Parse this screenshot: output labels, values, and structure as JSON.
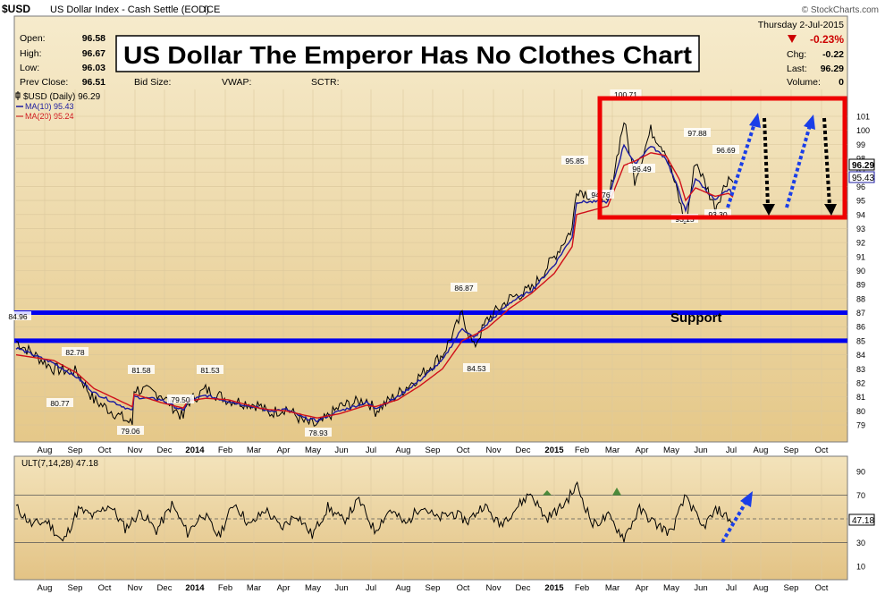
{
  "header": {
    "symbol": "$USD",
    "name": "US Dollar Index - Cash Settle (EOD)",
    "exchange": "ICE",
    "watermark": "© StockCharts.com",
    "date": "Thursday   2-Jul-2015",
    "stats_left": [
      {
        "label": "Open:",
        "value": "96.58"
      },
      {
        "label": "High:",
        "value": "96.67"
      },
      {
        "label": "Low:",
        "value": "96.03"
      },
      {
        "label": "Prev Close:",
        "value": "96.51"
      }
    ],
    "stats_mid": [
      "Bid Size:",
      "VWAP:",
      "SCTR:"
    ],
    "change_pct": "-0.23%",
    "stats_right": [
      {
        "label": "Chg:",
        "value": "-0.22"
      },
      {
        "label": "Last:",
        "value": "96.29"
      },
      {
        "label": "Volume:",
        "value": "0"
      }
    ]
  },
  "title": "US Dollar The Emperor Has No Clothes Chart",
  "support_label": "Support",
  "legend": [
    {
      "text": "$USD (Daily) 96.29",
      "color": "#000000"
    },
    {
      "text": "MA(10) 95.43",
      "color": "#1a1aa0"
    },
    {
      "text": "MA(20) 95.24",
      "color": "#d0101a"
    }
  ],
  "price_badges": [
    "96.29",
    "95.43"
  ],
  "osc_label": "ULT(7,14,28) 47.18",
  "osc_badge": "47.18",
  "colors": {
    "panel": "#eed9a6",
    "price": "#000000",
    "ma10": "#1a1aa0",
    "ma20": "#d0101a",
    "support": "#0000ee",
    "box": "#ee0000",
    "arrow_up": "#1a3ee8",
    "arrow_down": "#000000",
    "down_triangle": "#cc0000"
  },
  "chart_data": [
    {
      "type": "line",
      "x_labels": [
        "Aug",
        "Sep",
        "Oct",
        "Nov",
        "Dec",
        "2014",
        "Feb",
        "Mar",
        "Apr",
        "May",
        "Jun",
        "Jul",
        "Aug",
        "Sep",
        "Oct",
        "Nov",
        "Dec",
        "2015",
        "Feb",
        "Mar",
        "Apr",
        "May",
        "Jun",
        "Jul",
        "Aug",
        "Sep",
        "Oct"
      ],
      "y_ticks": [
        79,
        80,
        81,
        82,
        83,
        84,
        85,
        86,
        87,
        88,
        89,
        90,
        91,
        92,
        93,
        94,
        95,
        96,
        97,
        98,
        99,
        100,
        101
      ],
      "ylim": [
        78.2,
        101.8
      ],
      "series": [
        {
          "name": "$USD (Daily)",
          "values": [
            84.96,
            83.0,
            82.78,
            80.77,
            81.58,
            79.06,
            81.2,
            80.6,
            81.53,
            80.8,
            79.5,
            80.4,
            79.8,
            80.2,
            79.2,
            78.93,
            80.3,
            80.8,
            80.0,
            81.2,
            82.5,
            84.0,
            86.87,
            84.53,
            86.5,
            88.0,
            88.7,
            91.0,
            93.0,
            95.85,
            94.76,
            100.71,
            96.49,
            100.0,
            98.5,
            95.0,
            93.15,
            97.88,
            94.5,
            96.69,
            96.29
          ]
        },
        {
          "name": "MA(10)",
          "values": [
            84.5,
            83.4,
            82.4,
            81.3,
            81.0,
            80.0,
            80.8,
            80.7,
            81.1,
            80.7,
            80.0,
            80.2,
            80.0,
            80.1,
            79.5,
            79.3,
            80.0,
            80.6,
            80.2,
            81.0,
            82.2,
            83.6,
            85.9,
            85.2,
            86.2,
            87.7,
            88.6,
            90.4,
            92.4,
            94.9,
            94.9,
            99.0,
            97.6,
            98.9,
            98.0,
            95.6,
            94.2,
            96.6,
            95.0,
            95.8,
            95.43
          ]
        },
        {
          "name": "MA(20)",
          "values": [
            84.0,
            83.6,
            82.7,
            81.6,
            81.2,
            80.3,
            80.6,
            80.7,
            80.9,
            80.8,
            80.2,
            80.2,
            80.1,
            80.0,
            79.7,
            79.5,
            79.8,
            80.4,
            80.3,
            80.8,
            81.8,
            83.0,
            85.0,
            85.4,
            85.9,
            87.3,
            88.4,
            89.8,
            91.7,
            94.0,
            94.6,
            97.5,
            97.8,
            98.4,
            98.2,
            96.5,
            95.0,
            95.9,
            95.3,
            95.5,
            95.24
          ]
        }
      ],
      "annotations": [
        "84.96",
        "82.78",
        "80.77",
        "81.58",
        "79.06",
        "79.50",
        "81.53",
        "78.93",
        "86.87",
        "84.53",
        "95.85",
        "94.76",
        "100.71",
        "96.49",
        "97.88",
        "93.15",
        "96.69",
        "93.30"
      ],
      "support_lines": [
        87.0,
        85.0
      ]
    },
    {
      "type": "line",
      "name": "ULT(7,14,28)",
      "y_ticks": [
        10,
        30,
        50,
        70,
        90
      ],
      "ylim": [
        0,
        100
      ],
      "reference_lines": [
        70,
        50,
        30
      ],
      "values": [
        60,
        45,
        48,
        30,
        58,
        52,
        62,
        42,
        56,
        40,
        62,
        38,
        55,
        35,
        64,
        44,
        58,
        42,
        54,
        36,
        60,
        48,
        66,
        40,
        58,
        45,
        62,
        50,
        55,
        48,
        62,
        45,
        58,
        72,
        50,
        60,
        78,
        45,
        52,
        34,
        58,
        46,
        38,
        70,
        42,
        58,
        47.18
      ]
    }
  ]
}
